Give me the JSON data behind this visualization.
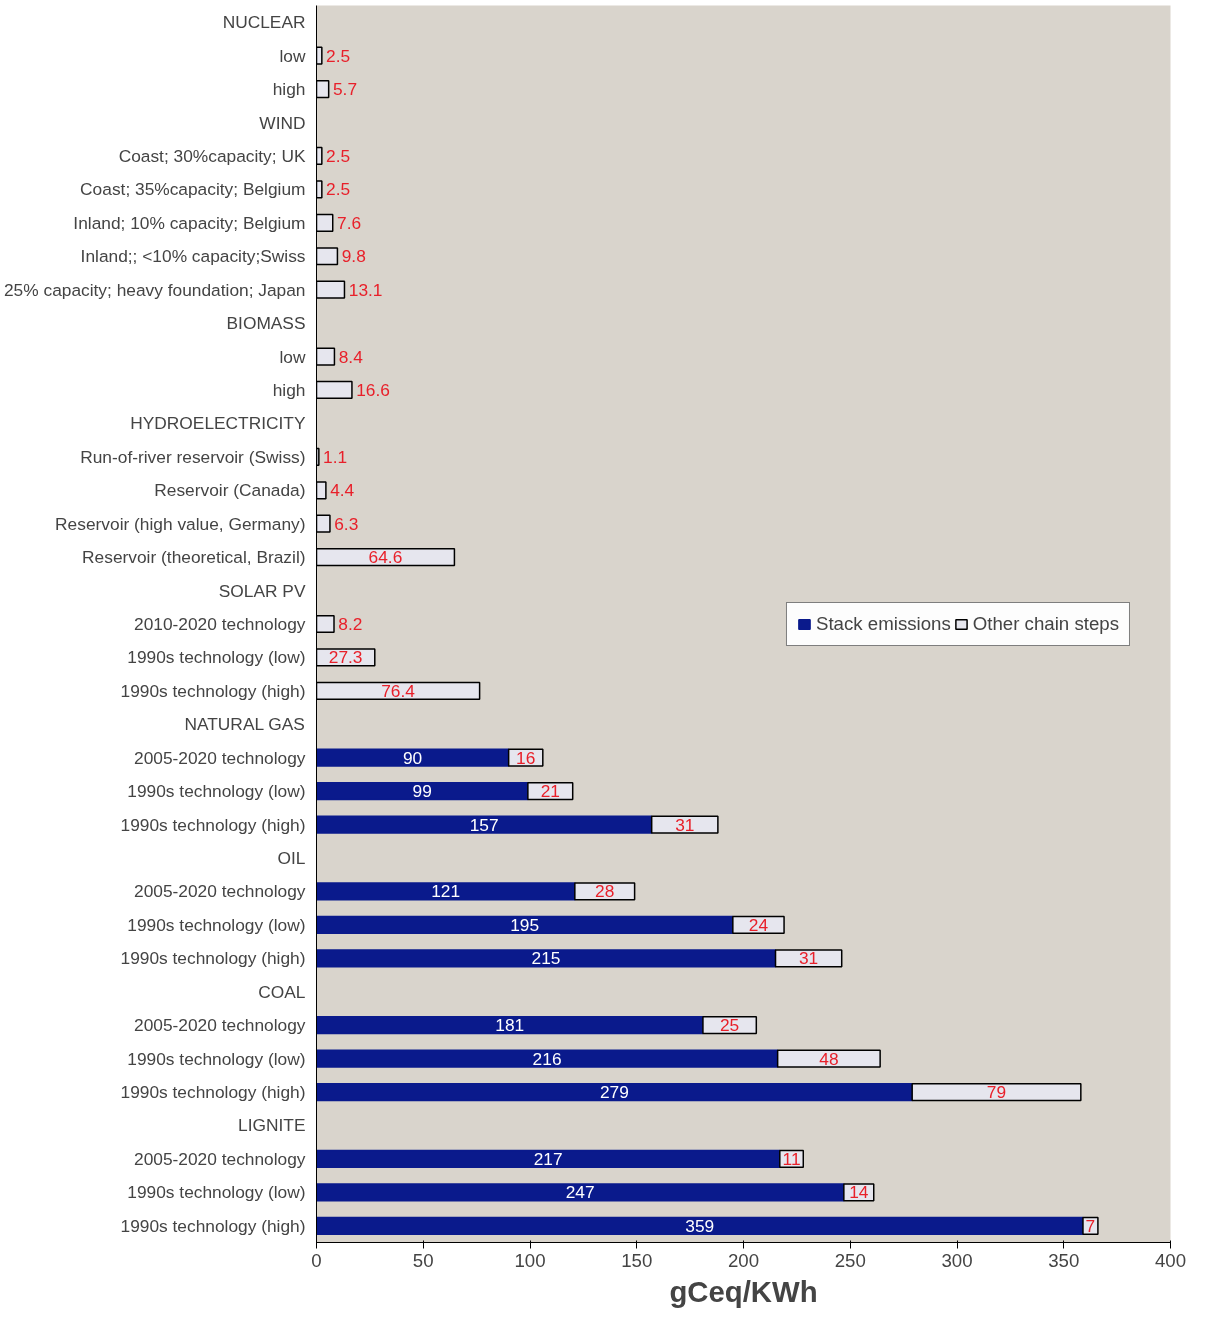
{
  "chart_data": {
    "type": "bar",
    "orientation": "horizontal",
    "stacked": true,
    "data_labels": true,
    "categories": [
      "NUCLEAR",
      "low",
      "high",
      "WIND",
      "Coast; 30%capacity; UK",
      "Coast; 35%capacity; Belgium",
      "Inland; 10% capacity; Belgium",
      "Inland;; <10% capacity;Swiss",
      "25% capacity; heavy foundation; Japan",
      "BIOMASS",
      "low",
      "high",
      "HYDROELECTRICITY",
      "Run-of-river reservoir (Swiss)",
      "Reservoir (Canada)",
      "Reservoir (high value, Germany)",
      "Reservoir (theoretical, Brazil)",
      "SOLAR PV",
      "2010-2020 technology",
      "1990s technology (low)",
      "1990s technology (high)",
      "NATURAL GAS",
      "2005-2020 technology",
      "1990s technology (low)",
      "1990s technology (high)",
      "OIL",
      "2005-2020 technology",
      "1990s technology (low)",
      "1990s technology (high)",
      "COAL",
      "2005-2020 technology",
      "1990s technology (low)",
      "1990s technology (high)",
      "LIGNITE",
      "2005-2020 technology",
      "1990s technology (low)",
      "1990s technology (high)"
    ],
    "series": [
      {
        "name": "Stack emissions",
        "color": "#0a1a8c",
        "values": [
          null,
          null,
          null,
          null,
          null,
          null,
          null,
          null,
          null,
          null,
          null,
          null,
          null,
          null,
          null,
          null,
          null,
          null,
          null,
          null,
          null,
          null,
          90,
          99,
          157,
          null,
          121,
          195,
          215,
          null,
          181,
          216,
          279,
          null,
          217,
          247,
          359
        ]
      },
      {
        "name": "Other chain steps",
        "color": "#e6e6ee",
        "values": [
          null,
          2.5,
          5.7,
          null,
          2.5,
          2.5,
          7.6,
          9.8,
          13.1,
          null,
          8.4,
          16.6,
          null,
          1.1,
          4.4,
          6.3,
          64.6,
          null,
          8.2,
          27.3,
          76.4,
          null,
          16,
          21,
          31,
          null,
          28,
          24,
          31,
          null,
          25,
          48,
          79,
          null,
          11,
          14,
          7
        ]
      }
    ],
    "xlim": [
      0,
      400
    ],
    "xticks": [
      0,
      50,
      100,
      150,
      200,
      250,
      300,
      350,
      400
    ],
    "xlabel": "gCeq/KWh",
    "legend": "right",
    "grid": false
  }
}
